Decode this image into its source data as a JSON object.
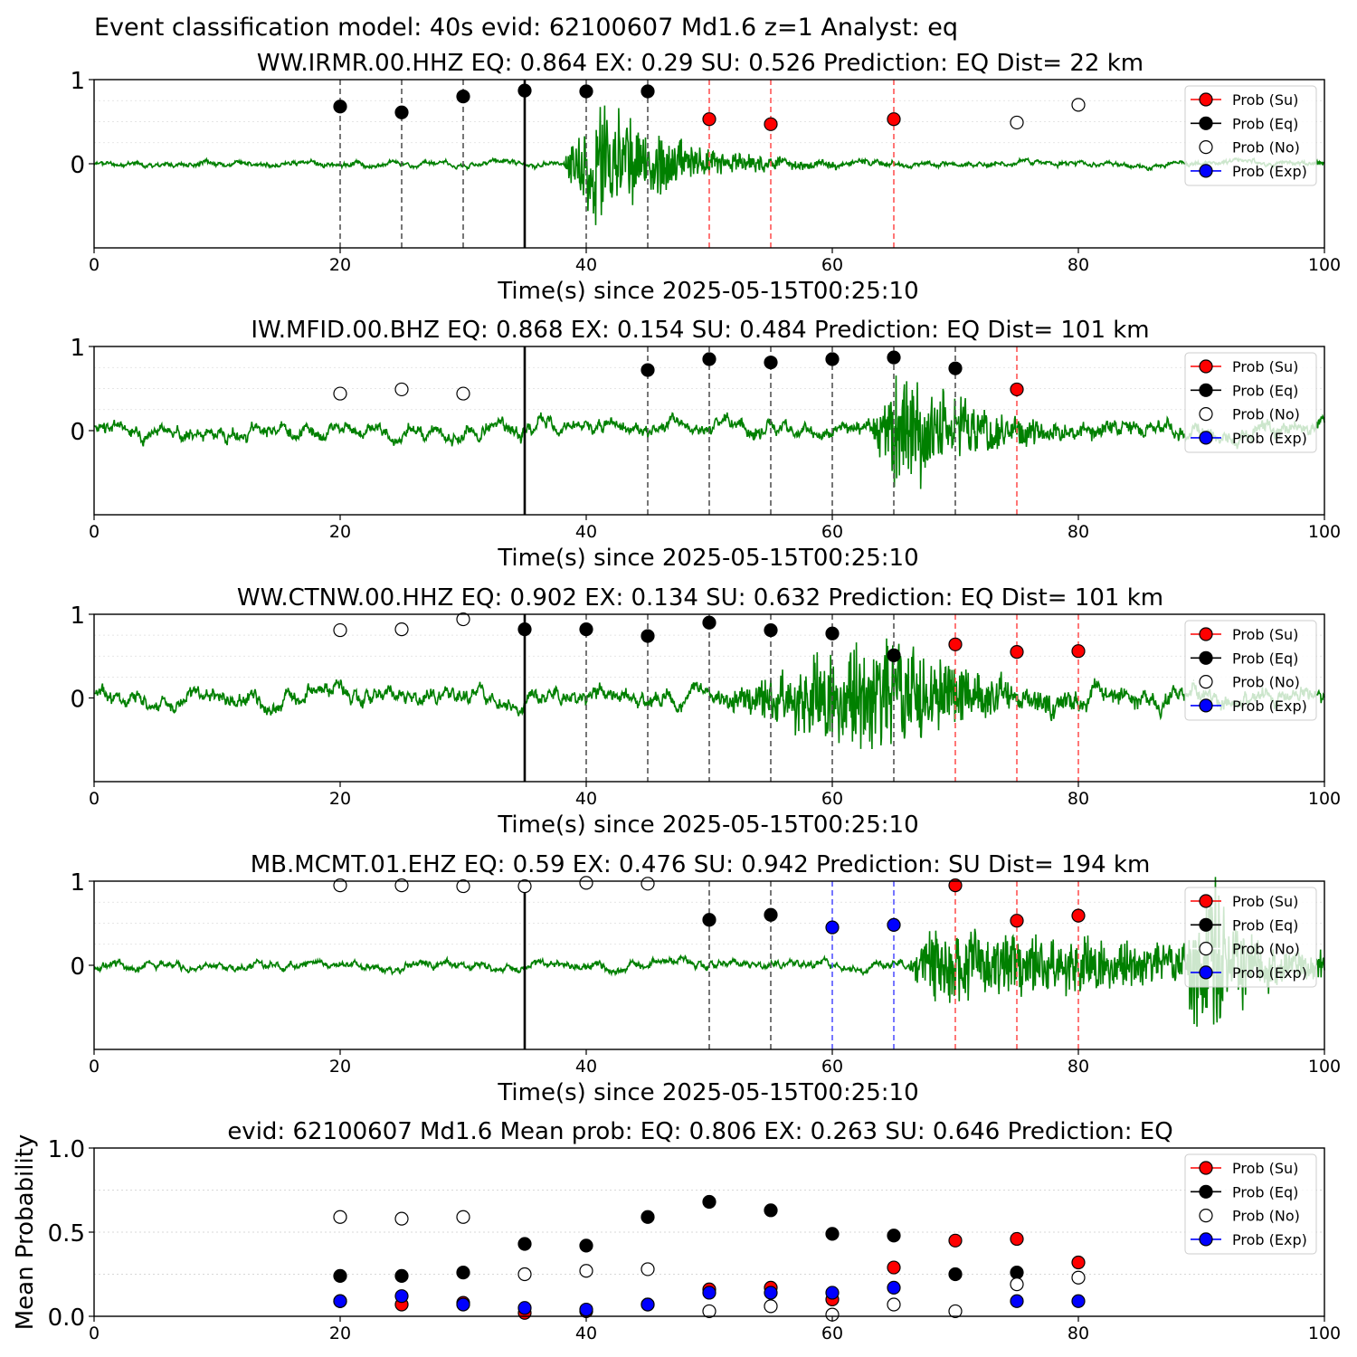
{
  "figure_title": "Event classification model: 40s evid: 62100607 Md1.6 z=1 Analyst: eq",
  "legend_labels": [
    "Prob (Su)",
    "Prob (Eq)",
    "Prob (No)",
    "Prob (Exp)"
  ],
  "colors": {
    "su": "#ff0000",
    "eq": "#000000",
    "no": "#ffffff",
    "exp": "#0000ff",
    "trace": "#008000",
    "dash_eq": "#555555",
    "dash_su": "#ff5555",
    "dash_exp": "#5555ff"
  },
  "chart_data": [
    {
      "type": "scatter",
      "title": "WW.IRMR.00.HHZ   EQ: 0.864  EX: 0.29  SU: 0.526   Prediction: EQ    Dist= 22 km",
      "xlabel": "Time(s) since 2025-05-15T00:25:10",
      "ylabel": "",
      "xlim": [
        0,
        100
      ],
      "xticks": [
        "0",
        "20",
        "40",
        "60",
        "80",
        "100"
      ],
      "yticks": [
        "0",
        "1"
      ],
      "pick_time": 35,
      "trace": {
        "onset": 38,
        "peak_time": 41,
        "amp": 0.95,
        "decay": 6,
        "noise": 0.03,
        "seed": 11
      },
      "windows": [
        {
          "t": 20,
          "class": "eq"
        },
        {
          "t": 25,
          "class": "eq"
        },
        {
          "t": 30,
          "class": "eq"
        },
        {
          "t": 35,
          "class": "eq"
        },
        {
          "t": 40,
          "class": "eq"
        },
        {
          "t": 45,
          "class": "eq"
        },
        {
          "t": 50,
          "class": "su"
        },
        {
          "t": 55,
          "class": "su"
        },
        {
          "t": 65,
          "class": "su"
        }
      ],
      "points": [
        {
          "x": 20,
          "y": 0.68,
          "class": "eq"
        },
        {
          "x": 25,
          "y": 0.61,
          "class": "eq"
        },
        {
          "x": 30,
          "y": 0.8,
          "class": "eq"
        },
        {
          "x": 35,
          "y": 0.87,
          "class": "eq"
        },
        {
          "x": 40,
          "y": 0.86,
          "class": "eq"
        },
        {
          "x": 45,
          "y": 0.86,
          "class": "eq"
        },
        {
          "x": 50,
          "y": 0.53,
          "class": "su"
        },
        {
          "x": 55,
          "y": 0.47,
          "class": "su"
        },
        {
          "x": 65,
          "y": 0.53,
          "class": "su"
        },
        {
          "x": 75,
          "y": 0.49,
          "class": "no"
        },
        {
          "x": 80,
          "y": 0.7,
          "class": "no"
        }
      ]
    },
    {
      "type": "scatter",
      "title": "IW.MFID.00.BHZ   EQ: 0.868  EX: 0.154  SU: 0.484   Prediction: EQ    Dist= 101 km",
      "xlabel": "Time(s) since 2025-05-15T00:25:10",
      "ylabel": "",
      "xlim": [
        0,
        100
      ],
      "xticks": [
        "0",
        "20",
        "40",
        "60",
        "80",
        "100"
      ],
      "yticks": [
        "0",
        "1"
      ],
      "pick_time": 35,
      "trace": {
        "onset": 63,
        "peak_time": 65.5,
        "amp": 0.9,
        "decay": 6,
        "noise": 0.09,
        "seed": 23
      },
      "windows": [
        {
          "t": 45,
          "class": "eq"
        },
        {
          "t": 50,
          "class": "eq"
        },
        {
          "t": 55,
          "class": "eq"
        },
        {
          "t": 60,
          "class": "eq"
        },
        {
          "t": 65,
          "class": "eq"
        },
        {
          "t": 70,
          "class": "eq"
        },
        {
          "t": 75,
          "class": "su"
        }
      ],
      "points": [
        {
          "x": 20,
          "y": 0.44,
          "class": "no"
        },
        {
          "x": 25,
          "y": 0.49,
          "class": "no"
        },
        {
          "x": 30,
          "y": 0.44,
          "class": "no"
        },
        {
          "x": 45,
          "y": 0.72,
          "class": "eq"
        },
        {
          "x": 50,
          "y": 0.85,
          "class": "eq"
        },
        {
          "x": 55,
          "y": 0.81,
          "class": "eq"
        },
        {
          "x": 60,
          "y": 0.85,
          "class": "eq"
        },
        {
          "x": 65,
          "y": 0.87,
          "class": "eq"
        },
        {
          "x": 70,
          "y": 0.74,
          "class": "eq"
        },
        {
          "x": 75,
          "y": 0.49,
          "class": "su"
        }
      ]
    },
    {
      "type": "scatter",
      "title": "WW.CTNW.00.HHZ   EQ: 0.902  EX: 0.134  SU: 0.632   Prediction: EQ    Dist= 101 km",
      "xlabel": "Time(s) since 2025-05-15T00:25:10",
      "ylabel": "",
      "xlim": [
        0,
        100
      ],
      "xticks": [
        "0",
        "20",
        "40",
        "60",
        "80",
        "100"
      ],
      "yticks": [
        "0",
        "1"
      ],
      "pick_time": 35,
      "trace": {
        "onset": 50,
        "peak_time": 64.5,
        "amp": 0.9,
        "decay": 7,
        "noise": 0.1,
        "seed": 37
      },
      "windows": [
        {
          "t": 40,
          "class": "eq"
        },
        {
          "t": 45,
          "class": "eq"
        },
        {
          "t": 50,
          "class": "eq"
        },
        {
          "t": 55,
          "class": "eq"
        },
        {
          "t": 60,
          "class": "eq"
        },
        {
          "t": 65,
          "class": "eq"
        },
        {
          "t": 70,
          "class": "su"
        },
        {
          "t": 75,
          "class": "su"
        },
        {
          "t": 80,
          "class": "su"
        }
      ],
      "points": [
        {
          "x": 20,
          "y": 0.81,
          "class": "no"
        },
        {
          "x": 25,
          "y": 0.82,
          "class": "no"
        },
        {
          "x": 30,
          "y": 0.94,
          "class": "no"
        },
        {
          "x": 35,
          "y": 0.82,
          "class": "eq"
        },
        {
          "x": 40,
          "y": 0.82,
          "class": "eq"
        },
        {
          "x": 45,
          "y": 0.74,
          "class": "eq"
        },
        {
          "x": 50,
          "y": 0.9,
          "class": "eq"
        },
        {
          "x": 55,
          "y": 0.81,
          "class": "eq"
        },
        {
          "x": 60,
          "y": 0.77,
          "class": "eq"
        },
        {
          "x": 65,
          "y": 0.51,
          "class": "eq"
        },
        {
          "x": 70,
          "y": 0.64,
          "class": "su"
        },
        {
          "x": 75,
          "y": 0.55,
          "class": "su"
        },
        {
          "x": 80,
          "y": 0.56,
          "class": "su"
        }
      ]
    },
    {
      "type": "scatter",
      "title": "MB.MCMT.01.EHZ   EQ: 0.59  EX: 0.476  SU: 0.942   Prediction: SU    Dist= 194 km",
      "xlabel": "Time(s) since 2025-05-15T00:25:10",
      "ylabel": "",
      "xlim": [
        0,
        100
      ],
      "xticks": [
        "0",
        "20",
        "40",
        "60",
        "80",
        "100"
      ],
      "yticks": [
        "0",
        "1"
      ],
      "pick_time": 35,
      "trace": {
        "onset": 66,
        "peak_time": 68,
        "amp": 0.55,
        "decay": 30,
        "noise": 0.05,
        "seed": 53,
        "late_burst": 91
      },
      "windows": [
        {
          "t": 50,
          "class": "eq"
        },
        {
          "t": 55,
          "class": "eq"
        },
        {
          "t": 60,
          "class": "exp"
        },
        {
          "t": 65,
          "class": "exp"
        },
        {
          "t": 70,
          "class": "su"
        },
        {
          "t": 75,
          "class": "su"
        },
        {
          "t": 80,
          "class": "su"
        }
      ],
      "points": [
        {
          "x": 20,
          "y": 0.95,
          "class": "no"
        },
        {
          "x": 25,
          "y": 0.95,
          "class": "no"
        },
        {
          "x": 30,
          "y": 0.94,
          "class": "no"
        },
        {
          "x": 35,
          "y": 0.94,
          "class": "no"
        },
        {
          "x": 40,
          "y": 0.98,
          "class": "no"
        },
        {
          "x": 45,
          "y": 0.97,
          "class": "no"
        },
        {
          "x": 50,
          "y": 0.54,
          "class": "eq"
        },
        {
          "x": 55,
          "y": 0.6,
          "class": "eq"
        },
        {
          "x": 60,
          "y": 0.45,
          "class": "exp"
        },
        {
          "x": 65,
          "y": 0.48,
          "class": "exp"
        },
        {
          "x": 70,
          "y": 0.95,
          "class": "su"
        },
        {
          "x": 75,
          "y": 0.53,
          "class": "su"
        },
        {
          "x": 80,
          "y": 0.59,
          "class": "su"
        }
      ]
    },
    {
      "type": "scatter",
      "title": "evid: 62100607  Md1.6   Mean prob:   EQ: 0.806  EX: 0.263  SU: 0.646   Prediction: EQ",
      "xlabel": "",
      "ylabel": "Mean Probability",
      "xlim": [
        0,
        100
      ],
      "ylim": [
        0,
        1
      ],
      "xticks": [
        "0",
        "20",
        "40",
        "60",
        "80",
        "100"
      ],
      "yticks": [
        "0.0",
        "0.5",
        "1.0"
      ],
      "series": [
        {
          "name": "Prob (Su)",
          "class": "su",
          "x": [
            20,
            25,
            30,
            35,
            40,
            45,
            50,
            55,
            60,
            65,
            70,
            75,
            80
          ],
          "y": [
            0.09,
            0.07,
            0.08,
            0.02,
            0.03,
            0.07,
            0.16,
            0.17,
            0.1,
            0.29,
            0.45,
            0.46,
            0.32
          ]
        },
        {
          "name": "Prob (Eq)",
          "class": "eq",
          "x": [
            20,
            25,
            30,
            35,
            40,
            45,
            50,
            55,
            60,
            65,
            70,
            75,
            80
          ],
          "y": [
            0.24,
            0.24,
            0.26,
            0.43,
            0.42,
            0.59,
            0.68,
            0.63,
            0.49,
            0.48,
            0.25,
            0.26,
            null
          ]
        },
        {
          "name": "Prob (No)",
          "class": "no",
          "x": [
            20,
            25,
            30,
            35,
            40,
            45,
            50,
            55,
            60,
            65,
            70,
            75,
            80
          ],
          "y": [
            0.59,
            0.58,
            0.59,
            0.25,
            0.27,
            0.28,
            0.03,
            0.06,
            0.01,
            0.07,
            0.03,
            0.19,
            0.23
          ]
        },
        {
          "name": "Prob (Exp)",
          "class": "exp",
          "x": [
            20,
            25,
            30,
            35,
            40,
            45,
            50,
            55,
            60,
            65,
            70,
            75,
            80
          ],
          "y": [
            0.09,
            0.12,
            0.07,
            0.05,
            0.04,
            0.07,
            0.14,
            0.14,
            0.14,
            0.17,
            null,
            0.09,
            0.09
          ]
        }
      ]
    }
  ]
}
